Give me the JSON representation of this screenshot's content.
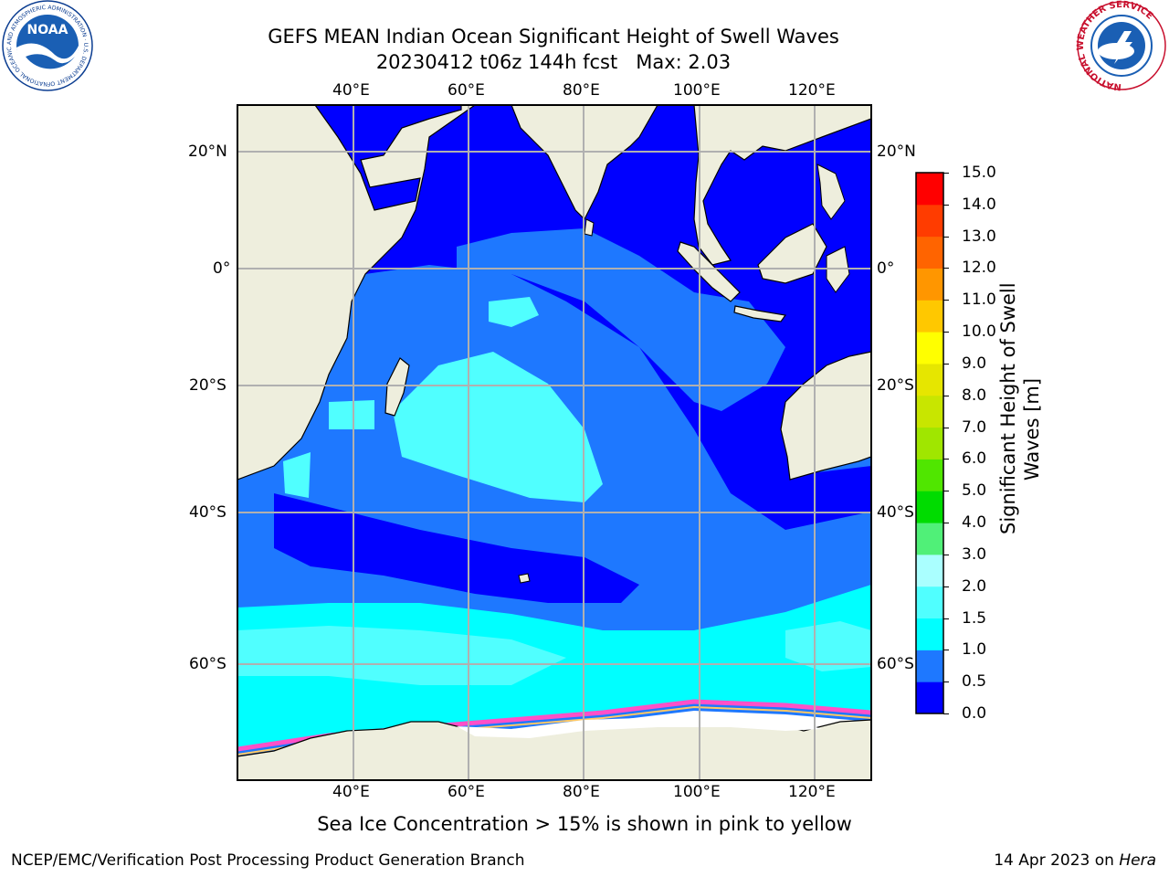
{
  "title": {
    "line1": "GEFS MEAN Indian Ocean Significant Height of Swell Waves",
    "line2": "20230412 t06z 144h fcst   Max: 2.03"
  },
  "map": {
    "lon_labels": [
      "40°E",
      "60°E",
      "80°E",
      "100°E",
      "120°E"
    ],
    "lat_labels": [
      "20°N",
      "0°",
      "20°S",
      "40°S",
      "60°S"
    ]
  },
  "colorbar": {
    "label_line1": "Significant Height of Swell",
    "label_line2": "Waves [m]",
    "ticks": [
      "0.0",
      "0.5",
      "1.0",
      "1.5",
      "2.0",
      "3.0",
      "4.0",
      "5.0",
      "6.0",
      "7.0",
      "8.0",
      "9.0",
      "10.0",
      "11.0",
      "12.0",
      "13.0",
      "14.0",
      "15.0"
    ],
    "colors": [
      "#0000ff",
      "#1e78ff",
      "#00ffff",
      "#50ffff",
      "#aaffff",
      "#50f078",
      "#00dc00",
      "#50e600",
      "#a0e600",
      "#c8e600",
      "#e6e600",
      "#ffff00",
      "#ffc800",
      "#ff9600",
      "#ff6400",
      "#ff3c00",
      "#ff0000"
    ]
  },
  "note": "Sea Ice Concentration > 15% is shown in pink to yellow",
  "footer": {
    "left": "NCEP/EMC/Verification Post Processing Product Generation Branch",
    "right_date": "14 Apr 2023 on",
    "right_host": "Hera"
  },
  "logos": {
    "left_text": "NOAA",
    "left_ring": "NATIONAL OCEANIC AND ATMOSPHERIC ADMINISTRATION · U.S. DEPARTMENT OF COMMERCE",
    "right_ring": "NATIONAL WEATHER SERVICE"
  },
  "colors": {
    "land": "#eeeedd",
    "swell_0": "#0000ff",
    "swell_05": "#1e78ff",
    "swell_1": "#00ffff",
    "swell_15": "#50ffff",
    "ice": "#ffffff",
    "ice_edge": "#ff50c8"
  }
}
